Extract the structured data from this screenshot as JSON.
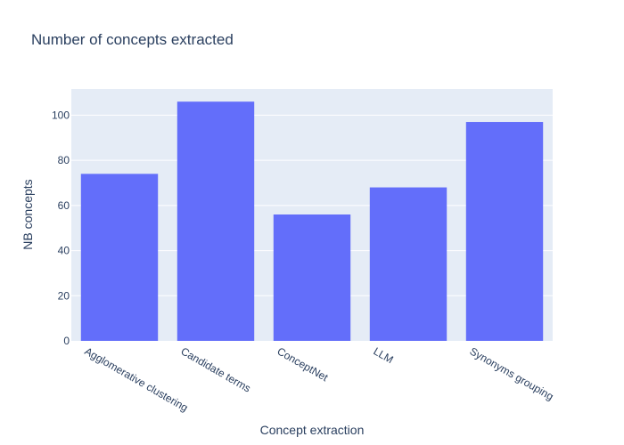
{
  "chart_data": {
    "type": "bar",
    "title": "Number of concepts extracted",
    "xlabel": "Concept extraction",
    "ylabel": "NB concepts",
    "categories": [
      "Agglomerative clustering",
      "Candidate terms",
      "ConceptNet",
      "LLM",
      "Synonyms grouping"
    ],
    "values": [
      74,
      106,
      56,
      68,
      97
    ],
    "ylim": [
      0,
      111.6
    ],
    "yticks": [
      0,
      20,
      40,
      60,
      80,
      100
    ],
    "grid": true,
    "colors": {
      "bar": "#636efa",
      "plot_background": "#e5ecf6",
      "grid": "#ffffff",
      "text": "#2a3f5f"
    }
  }
}
